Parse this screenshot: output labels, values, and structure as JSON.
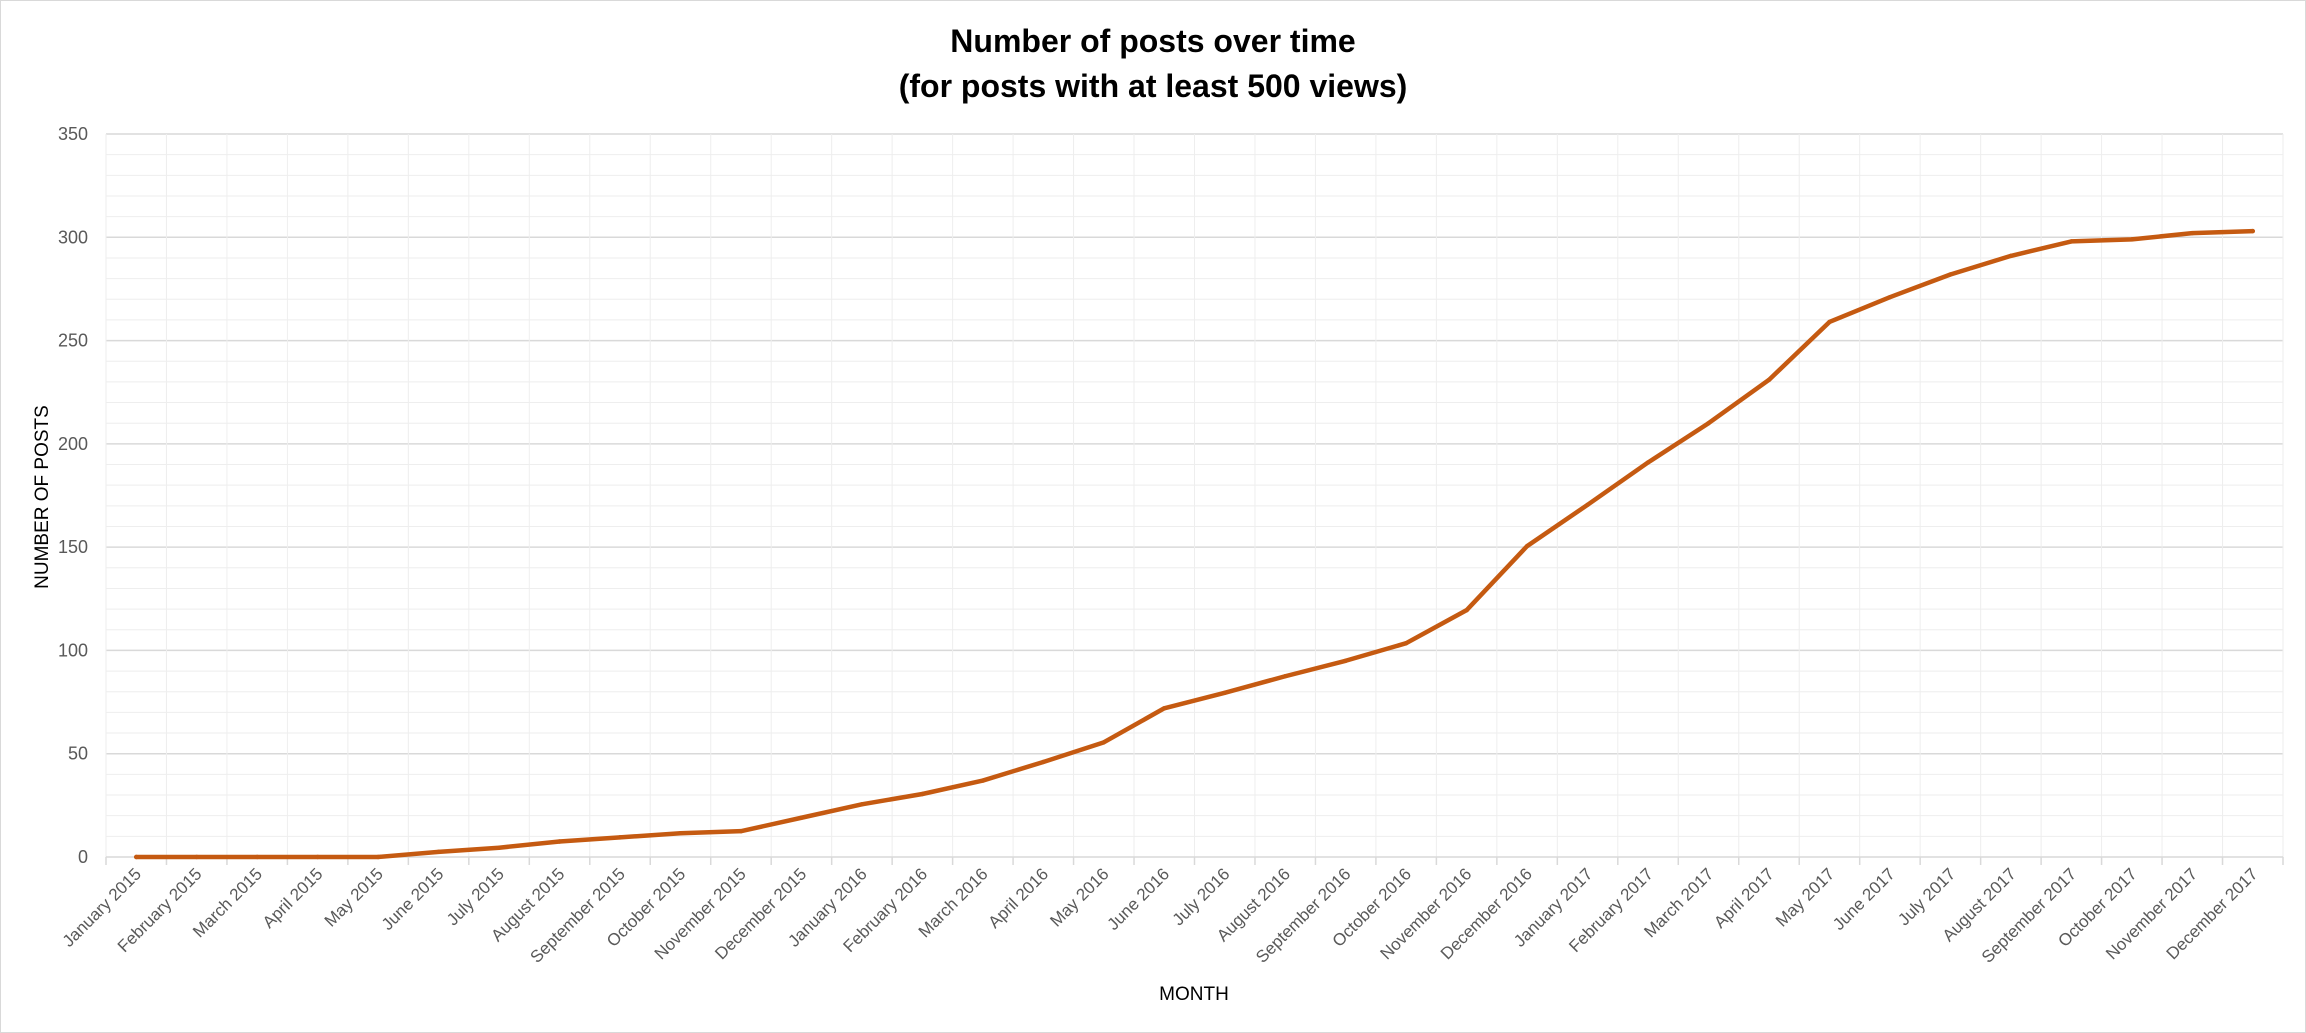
{
  "chart_data": {
    "type": "line",
    "title": [
      "Number of posts over time",
      "(for posts with at least 500 views)"
    ],
    "xlabel": "MONTH",
    "ylabel": "NUMBER OF POSTS",
    "ylim": [
      0,
      350
    ],
    "yticks": [
      0,
      50,
      100,
      150,
      200,
      250,
      300,
      350
    ],
    "grid": true,
    "legend": "none",
    "colors": {
      "line": "#c55a11",
      "major_grid": "#d9d9d9",
      "minor_grid": "#eeeeee",
      "axis": "#d9d9d9"
    },
    "categories": [
      "January 2015",
      "February 2015",
      "March 2015",
      "April 2015",
      "May 2015",
      "June 2015",
      "July 2015",
      "August 2015",
      "September 2015",
      "October 2015",
      "November 2015",
      "December 2015",
      "January 2016",
      "February 2016",
      "March 2016",
      "April 2016",
      "May 2016",
      "June 2016",
      "July 2016",
      "August 2016",
      "September 2016",
      "October 2016",
      "November 2016",
      "December 2016",
      "January 2017",
      "February 2017",
      "March 2017",
      "April 2017",
      "May 2017",
      "June 2017",
      "July 2017",
      "August 2017",
      "September 2017",
      "October 2017",
      "November 2017",
      "December 2017"
    ],
    "series": [
      {
        "name": "Number of posts",
        "values": [
          0,
          0,
          0,
          0,
          0,
          2.5,
          4.5,
          7.5,
          9.5,
          11.5,
          12.5,
          19,
          25.5,
          30.5,
          37,
          46,
          55.5,
          72,
          79.5,
          87.5,
          95,
          103.5,
          119.5,
          150.5,
          170.5,
          191,
          210,
          231,
          259,
          271,
          282,
          291,
          298,
          299,
          302,
          303
        ]
      }
    ]
  }
}
